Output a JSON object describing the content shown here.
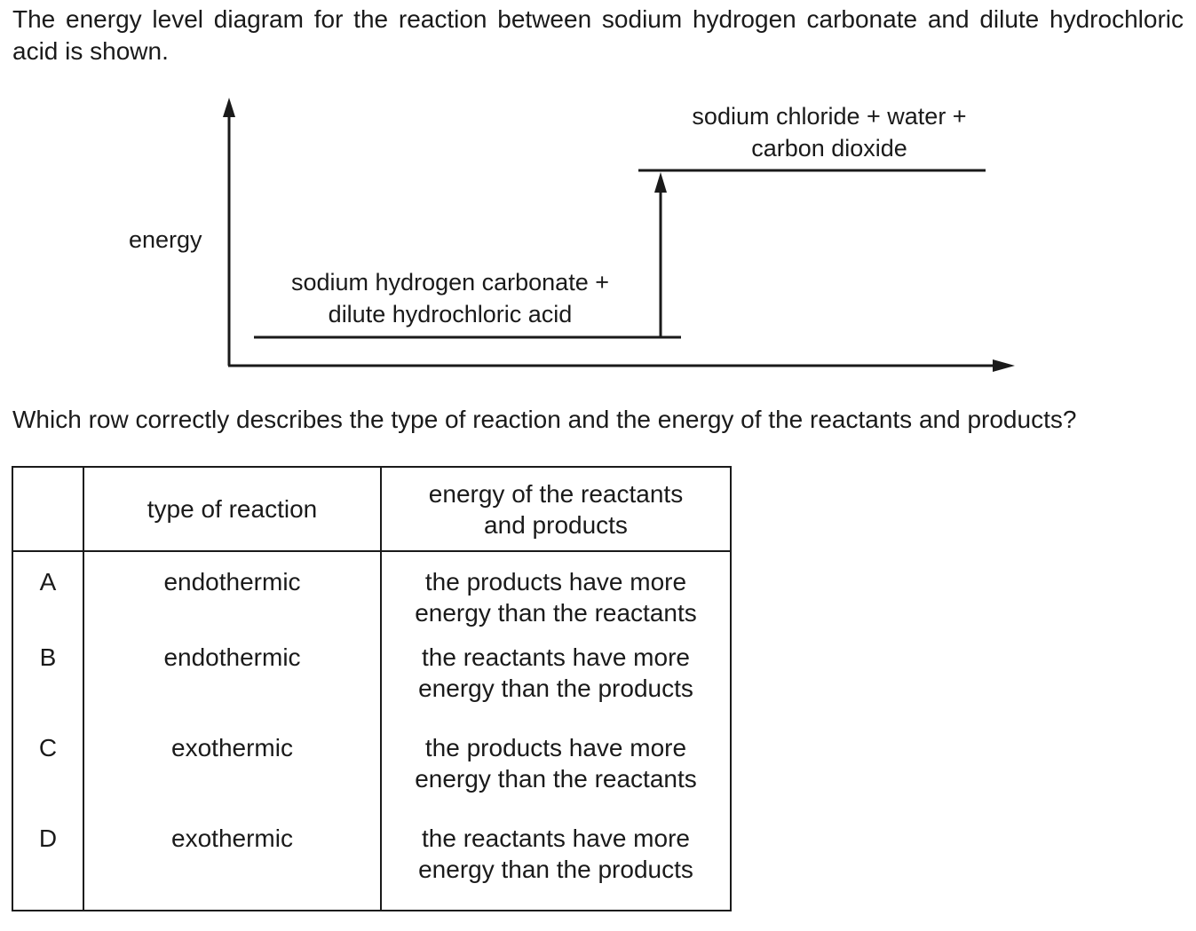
{
  "intro_text": "The energy level diagram for the reaction between sodium hydrogen carbonate and dilute hydrochloric acid is shown.",
  "diagram": {
    "y_axis_label": "energy",
    "reactants_label_line1": "sodium hydrogen carbonate +",
    "reactants_label_line2": "dilute hydrochloric acid",
    "products_label_line1": "sodium chloride + water +",
    "products_label_line2": "carbon dioxide"
  },
  "question": "Which row correctly describes the type of reaction and the energy of the reactants and products?",
  "table": {
    "header_type": "type of reaction",
    "header_energy_line1": "energy of the reactants",
    "header_energy_line2": "and products",
    "rows": [
      {
        "letter": "A",
        "type": "endothermic",
        "energy_line1": "the products have more",
        "energy_line2": "energy than the reactants"
      },
      {
        "letter": "B",
        "type": "endothermic",
        "energy_line1": "the reactants have more",
        "energy_line2": "energy than the products"
      },
      {
        "letter": "C",
        "type": "exothermic",
        "energy_line1": "the products have more",
        "energy_line2": "energy than the reactants"
      },
      {
        "letter": "D",
        "type": "exothermic",
        "energy_line1": "the reactants have more",
        "energy_line2": "energy than the products"
      }
    ]
  }
}
